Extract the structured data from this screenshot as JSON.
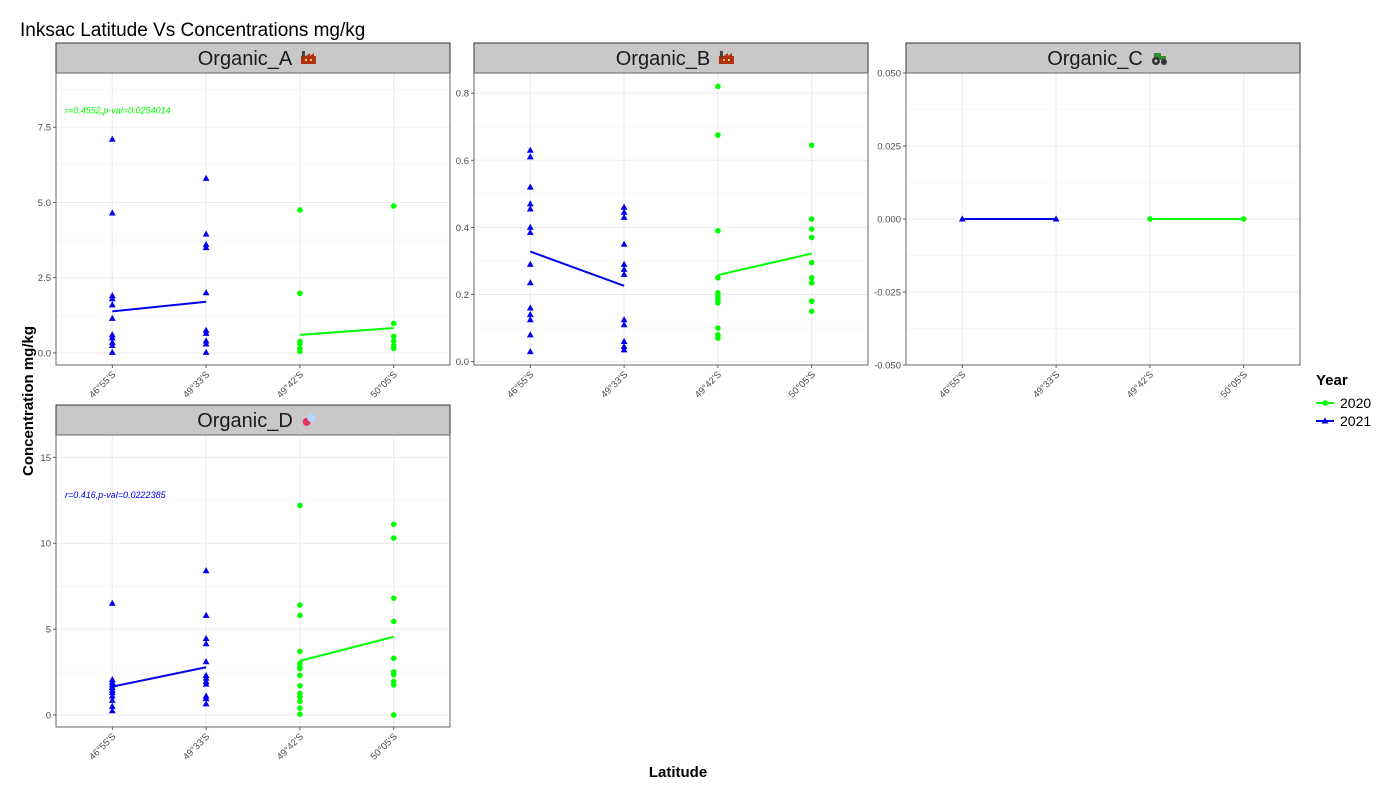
{
  "title": "Inksac Latitude Vs Concentrations mg/kg",
  "xlabel": "Latitude",
  "ylabel": "Concentration mg/kg",
  "legend": {
    "title": "Year",
    "placement": "right",
    "entries": [
      {
        "label": "2020",
        "color": "#00ff00",
        "shape": "circle"
      },
      {
        "label": "2021",
        "color": "#0000ee",
        "shape": "triangle"
      }
    ]
  },
  "colors": {
    "y2020": "#00ff00",
    "y2021": "#0000ee",
    "strip_bg": "#c8c8c8",
    "grid": "#ebebeb"
  },
  "chart_data": [
    {
      "type": "scatter",
      "panel": "Organic_A",
      "icon": "factory-icon",
      "categories": [
        "46°55'S",
        "49°33'S",
        "49°42'S",
        "50°05'S"
      ],
      "ylim": [
        -0.4,
        9.3
      ],
      "yticks": [
        0.0,
        2.5,
        5.0,
        7.5
      ],
      "ytick_labels": [
        "0.0",
        "2.5",
        "5.0",
        "7.5"
      ],
      "annotation": {
        "text": "r=0.4552,p-val=0.0254014",
        "color": "#00ff00",
        "y": 8.05
      },
      "series": [
        {
          "name": "2021",
          "shape": "triangle",
          "points": [
            [
              0,
              7.1
            ],
            [
              0,
              4.65
            ],
            [
              0,
              1.9
            ],
            [
              0,
              1.8
            ],
            [
              0,
              1.6
            ],
            [
              0,
              1.15
            ],
            [
              0,
              0.6
            ],
            [
              0,
              0.5
            ],
            [
              0,
              0.35
            ],
            [
              0,
              0.25
            ],
            [
              0,
              0.02
            ],
            [
              1,
              5.8
            ],
            [
              1,
              3.95
            ],
            [
              1,
              3.6
            ],
            [
              1,
              3.5
            ],
            [
              1,
              2.0
            ],
            [
              1,
              0.75
            ],
            [
              1,
              0.65
            ],
            [
              1,
              0.4
            ],
            [
              1,
              0.3
            ],
            [
              1,
              0.02
            ]
          ],
          "line": [
            [
              0,
              1.38
            ],
            [
              1,
              1.7
            ]
          ]
        },
        {
          "name": "2020",
          "shape": "circle",
          "points": [
            [
              2,
              4.75
            ],
            [
              2,
              1.98
            ],
            [
              2,
              0.38
            ],
            [
              2,
              0.3
            ],
            [
              2,
              0.15
            ],
            [
              2,
              0.05
            ],
            [
              3,
              4.88
            ],
            [
              3,
              0.98
            ],
            [
              3,
              0.55
            ],
            [
              3,
              0.4
            ],
            [
              3,
              0.25
            ],
            [
              3,
              0.15
            ]
          ],
          "line": [
            [
              2,
              0.6
            ],
            [
              3,
              0.83
            ]
          ]
        }
      ]
    },
    {
      "type": "scatter",
      "panel": "Organic_B",
      "icon": "factory-icon",
      "categories": [
        "46°55'S",
        "49°33'S",
        "49°42'S",
        "50°05'S"
      ],
      "ylim": [
        -0.01,
        0.86
      ],
      "yticks": [
        0.0,
        0.2,
        0.4,
        0.6,
        0.8
      ],
      "ytick_labels": [
        "0.0",
        "0.2",
        "0.4",
        "0.6",
        "0.8"
      ],
      "annotation": null,
      "series": [
        {
          "name": "2021",
          "shape": "triangle",
          "points": [
            [
              0,
              0.63
            ],
            [
              0,
              0.61
            ],
            [
              0,
              0.52
            ],
            [
              0,
              0.47
            ],
            [
              0,
              0.455
            ],
            [
              0,
              0.4
            ],
            [
              0,
              0.385
            ],
            [
              0,
              0.29
            ],
            [
              0,
              0.235
            ],
            [
              0,
              0.16
            ],
            [
              0,
              0.14
            ],
            [
              0,
              0.125
            ],
            [
              0,
              0.08
            ],
            [
              0,
              0.03
            ],
            [
              1,
              0.46
            ],
            [
              1,
              0.445
            ],
            [
              1,
              0.43
            ],
            [
              1,
              0.35
            ],
            [
              1,
              0.29
            ],
            [
              1,
              0.275
            ],
            [
              1,
              0.26
            ],
            [
              1,
              0.125
            ],
            [
              1,
              0.11
            ],
            [
              1,
              0.06
            ],
            [
              1,
              0.045
            ],
            [
              1,
              0.035
            ]
          ],
          "line": [
            [
              0,
              0.328
            ],
            [
              1,
              0.226
            ]
          ]
        },
        {
          "name": "2020",
          "shape": "circle",
          "points": [
            [
              2,
              0.82
            ],
            [
              2,
              0.675
            ],
            [
              2,
              0.39
            ],
            [
              2,
              0.25
            ],
            [
              2,
              0.205
            ],
            [
              2,
              0.195
            ],
            [
              2,
              0.185
            ],
            [
              2,
              0.175
            ],
            [
              2,
              0.1
            ],
            [
              2,
              0.08
            ],
            [
              2,
              0.07
            ],
            [
              3,
              0.645
            ],
            [
              3,
              0.425
            ],
            [
              3,
              0.395
            ],
            [
              3,
              0.37
            ],
            [
              3,
              0.295
            ],
            [
              3,
              0.25
            ],
            [
              3,
              0.235
            ],
            [
              3,
              0.18
            ],
            [
              3,
              0.15
            ]
          ],
          "line": [
            [
              2,
              0.258
            ],
            [
              3,
              0.322
            ]
          ]
        }
      ]
    },
    {
      "type": "scatter",
      "panel": "Organic_C",
      "icon": "tractor-icon",
      "categories": [
        "46°55'S",
        "49°33'S",
        "49°42'S",
        "50°05'S"
      ],
      "ylim": [
        -0.05,
        0.05
      ],
      "yticks": [
        -0.05,
        -0.025,
        0.0,
        0.025,
        0.05
      ],
      "ytick_labels": [
        "-0.050",
        "-0.025",
        "0.000",
        "0.025",
        "0.050"
      ],
      "annotation": null,
      "series": [
        {
          "name": "2021",
          "shape": "triangle",
          "points": [
            [
              0,
              0
            ],
            [
              1,
              0
            ]
          ],
          "line": [
            [
              0,
              0
            ],
            [
              1,
              0
            ]
          ]
        },
        {
          "name": "2020",
          "shape": "circle",
          "points": [
            [
              2,
              0
            ],
            [
              3,
              0
            ]
          ],
          "line": [
            [
              2,
              0
            ],
            [
              3,
              0
            ]
          ]
        }
      ]
    },
    {
      "type": "scatter",
      "panel": "Organic_D",
      "icon": "pill-icon",
      "categories": [
        "46°55'S",
        "49°33'S",
        "49°42'S",
        "50°05'S"
      ],
      "ylim": [
        -0.7,
        16.3
      ],
      "yticks": [
        0,
        5,
        10,
        15
      ],
      "ytick_labels": [
        "0",
        "5",
        "10",
        "15"
      ],
      "annotation": {
        "text": "r=0.416,p-val=0.0222385",
        "color": "#0000ee",
        "y": 12.8
      },
      "series": [
        {
          "name": "2021",
          "shape": "triangle",
          "points": [
            [
              0,
              6.5
            ],
            [
              0,
              2.05
            ],
            [
              0,
              1.9
            ],
            [
              0,
              1.75
            ],
            [
              0,
              1.6
            ],
            [
              0,
              1.45
            ],
            [
              0,
              1.3
            ],
            [
              0,
              1.1
            ],
            [
              0,
              0.85
            ],
            [
              0,
              0.5
            ],
            [
              0,
              0.25
            ],
            [
              1,
              8.4
            ],
            [
              1,
              5.8
            ],
            [
              1,
              4.45
            ],
            [
              1,
              4.15
            ],
            [
              1,
              3.1
            ],
            [
              1,
              2.3
            ],
            [
              1,
              2.15
            ],
            [
              1,
              1.95
            ],
            [
              1,
              1.8
            ],
            [
              1,
              1.1
            ],
            [
              1,
              0.95
            ],
            [
              1,
              0.65
            ]
          ],
          "line": [
            [
              0,
              1.65
            ],
            [
              1,
              2.78
            ]
          ]
        },
        {
          "name": "2020",
          "shape": "circle",
          "points": [
            [
              2,
              12.2
            ],
            [
              2,
              6.4
            ],
            [
              2,
              5.8
            ],
            [
              2,
              3.7
            ],
            [
              2,
              3.0
            ],
            [
              2,
              2.8
            ],
            [
              2,
              2.7
            ],
            [
              2,
              2.3
            ],
            [
              2,
              1.7
            ],
            [
              2,
              1.25
            ],
            [
              2,
              1.05
            ],
            [
              2,
              0.8
            ],
            [
              2,
              0.4
            ],
            [
              2,
              0.05
            ],
            [
              3,
              11.1
            ],
            [
              3,
              10.3
            ],
            [
              3,
              6.8
            ],
            [
              3,
              5.45
            ],
            [
              3,
              3.3
            ],
            [
              3,
              2.5
            ],
            [
              3,
              2.35
            ],
            [
              3,
              1.95
            ],
            [
              3,
              1.75
            ],
            [
              3,
              0.0
            ]
          ],
          "line": [
            [
              2,
              3.15
            ],
            [
              3,
              4.55
            ]
          ]
        }
      ]
    }
  ]
}
